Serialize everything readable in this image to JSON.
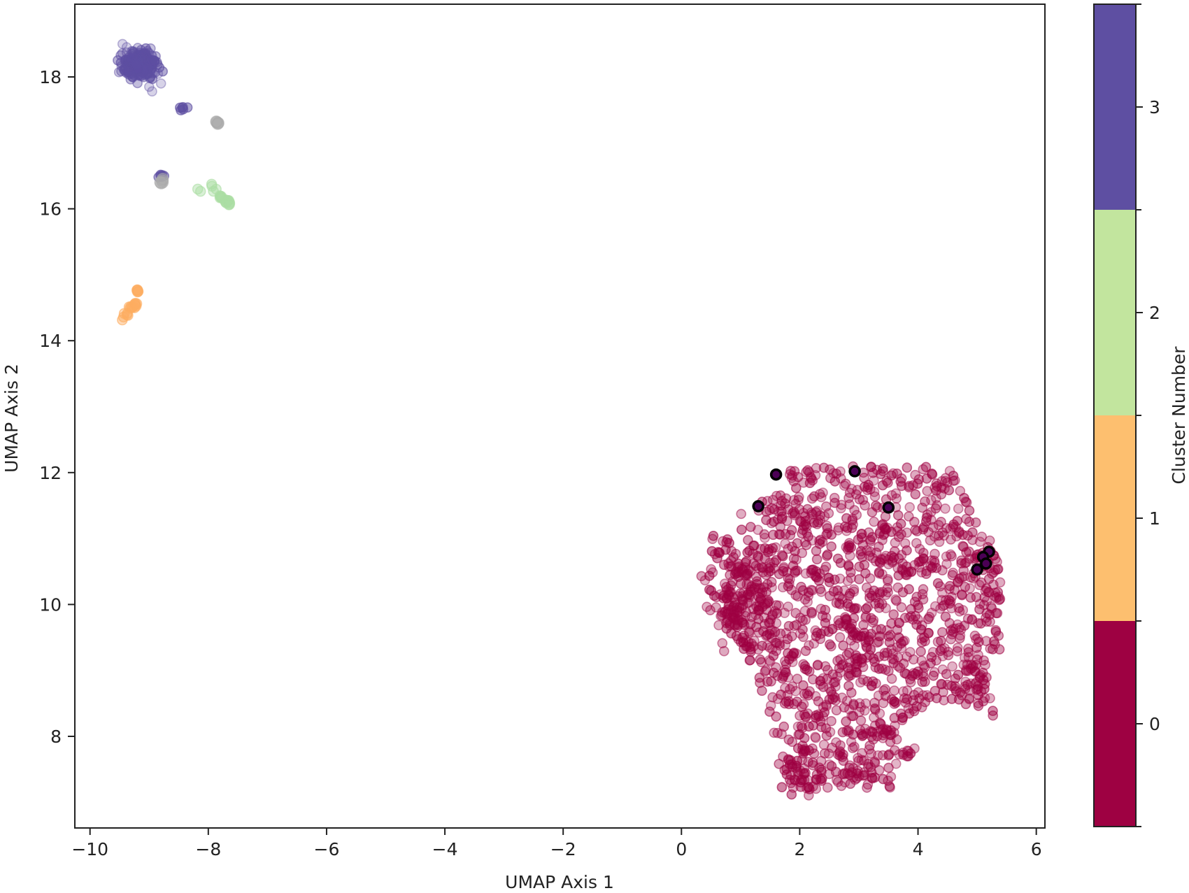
{
  "chart_data": {
    "type": "scatter",
    "title": "",
    "xlabel": "UMAP Axis 1",
    "ylabel": "UMAP Axis 2",
    "xlim": [
      -10.25,
      6.05
    ],
    "ylim": [
      6.85,
      19.05
    ],
    "xticks": [
      -10,
      -8,
      -6,
      -4,
      -2,
      0,
      2,
      4,
      6
    ],
    "xtick_labels": [
      "−10",
      "−8",
      "−6",
      "−4",
      "−2",
      "0",
      "2",
      "4",
      "6"
    ],
    "yticks": [
      8,
      10,
      12,
      14,
      16,
      18
    ],
    "ytick_labels": [
      "8",
      "10",
      "12",
      "14",
      "16",
      "18"
    ],
    "grid": false,
    "colorbar": {
      "label": "Cluster Number",
      "ticks": [
        0,
        1,
        2,
        3
      ],
      "tick_labels": [
        "0",
        "1",
        "2",
        "3"
      ],
      "colors": [
        "#9e0142",
        "#fdbf6f",
        "#c2e59e",
        "#5e4fa2"
      ]
    },
    "series": [
      {
        "name": "Cluster 0",
        "cluster": 0,
        "color": "#9e0142",
        "approx_points": 1500,
        "extent": {
          "x": [
            0.5,
            5.4
          ],
          "y": [
            7.2,
            12.1
          ]
        },
        "centroid": [
          3.0,
          9.9
        ]
      },
      {
        "name": "Cluster 1",
        "cluster": 1,
        "color": "#fdae61",
        "approx_points": 25,
        "points": [
          [
            -9.45,
            14.35
          ],
          [
            -9.4,
            14.38
          ],
          [
            -9.35,
            14.4
          ],
          [
            -9.3,
            14.5
          ],
          [
            -9.25,
            14.55
          ],
          [
            -9.2,
            14.75
          ]
        ]
      },
      {
        "name": "Cluster 2",
        "cluster": 2,
        "color": "#abdda4",
        "approx_points": 20,
        "points": [
          [
            -8.15,
            16.28
          ],
          [
            -7.95,
            16.35
          ],
          [
            -7.9,
            16.28
          ],
          [
            -7.8,
            16.18
          ],
          [
            -7.7,
            16.12
          ],
          [
            -7.65,
            16.08
          ]
        ]
      },
      {
        "name": "Cluster 3",
        "cluster": 3,
        "color": "#5e4fa2",
        "approx_points": 250,
        "extent": {
          "x": [
            -9.5,
            -8.8
          ],
          "y": [
            17.8,
            18.5
          ]
        },
        "centroid": [
          -9.15,
          18.2
        ],
        "extra_points": [
          [
            -8.45,
            17.5
          ],
          [
            -8.8,
            16.52
          ]
        ]
      },
      {
        "name": "Noise / unassigned",
        "cluster": -1,
        "color": "#aaaaaa",
        "points": [
          [
            -7.85,
            17.3
          ],
          [
            -8.78,
            16.42
          ]
        ]
      },
      {
        "name": "Highlighted samples",
        "color": "#4b0055",
        "edgecolor": "#000000",
        "points": [
          [
            1.6,
            11.97
          ],
          [
            2.93,
            12.02
          ],
          [
            1.3,
            11.49
          ],
          [
            3.5,
            11.47
          ],
          [
            5.2,
            10.8
          ],
          [
            5.1,
            10.72
          ],
          [
            5.15,
            10.62
          ],
          [
            5.0,
            10.53
          ]
        ]
      }
    ]
  }
}
